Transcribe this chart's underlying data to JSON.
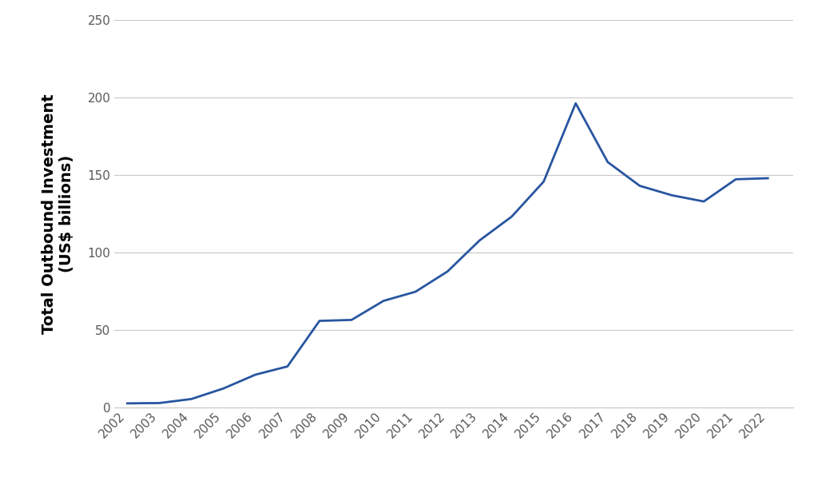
{
  "years": [
    2002,
    2003,
    2004,
    2005,
    2006,
    2007,
    2008,
    2009,
    2010,
    2011,
    2012,
    2013,
    2014,
    2015,
    2016,
    2017,
    2018,
    2019,
    2020,
    2021,
    2022
  ],
  "values": [
    2.7,
    2.9,
    5.5,
    12.3,
    21.2,
    26.5,
    55.9,
    56.5,
    68.8,
    74.7,
    87.8,
    107.8,
    123.1,
    145.7,
    196.2,
    158.3,
    143.0,
    136.9,
    132.9,
    147.2,
    147.9
  ],
  "ylabel_top": "Total Outbound Investment",
  "ylabel_bottom": "(US$ billions)",
  "line_color": "#2855a0",
  "line_width": 2.0,
  "ylim": [
    0,
    250
  ],
  "yticks": [
    0,
    50,
    100,
    150,
    200,
    250
  ],
  "background_color": "#ffffff",
  "grid_color": "#c8c8c8",
  "tick_label_color": "#595959",
  "tick_fontsize": 11,
  "ylabel_fontsize": 14
}
